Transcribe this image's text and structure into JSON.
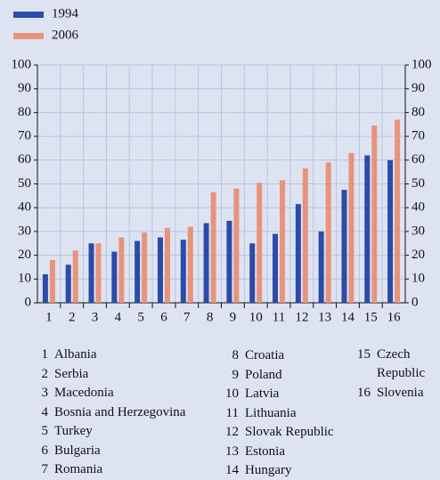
{
  "chart_data": {
    "type": "bar",
    "categories": [
      "1",
      "2",
      "3",
      "4",
      "5",
      "6",
      "7",
      "8",
      "9",
      "10",
      "11",
      "12",
      "13",
      "14",
      "15",
      "16"
    ],
    "series": [
      {
        "name": "1994",
        "color": "#2c4aa8",
        "values": [
          12,
          16,
          25,
          21.5,
          26,
          27.5,
          26.5,
          33.5,
          34.5,
          25,
          29,
          41.5,
          30,
          47.5,
          62,
          60
        ]
      },
      {
        "name": "2006",
        "color": "#e8937c",
        "values": [
          18,
          22,
          25,
          27.5,
          29.5,
          31.5,
          32,
          46.5,
          48,
          50.5,
          51.5,
          56.5,
          59,
          63,
          74.5,
          77
        ]
      }
    ],
    "ylim": [
      0,
      100
    ],
    "yticks": [
      0,
      10,
      20,
      30,
      40,
      50,
      60,
      70,
      80,
      90,
      100
    ],
    "y2lim": [
      0,
      100
    ],
    "y2ticks": [
      0,
      10,
      20,
      30,
      40,
      50,
      60,
      70,
      80,
      90,
      100
    ],
    "grid": true,
    "notes": [
      {
        "key": "1",
        "name": "Albania"
      },
      {
        "key": "2",
        "name": "Serbia"
      },
      {
        "key": "3",
        "name": "Macedonia"
      },
      {
        "key": "4",
        "name": "Bosnia and Herzegovina"
      },
      {
        "key": "5",
        "name": "Turkey"
      },
      {
        "key": "6",
        "name": "Bulgaria"
      },
      {
        "key": "7",
        "name": "Romania"
      },
      {
        "key": "8",
        "name": "Croatia"
      },
      {
        "key": "9",
        "name": "Poland"
      },
      {
        "key": "10",
        "name": "Latvia"
      },
      {
        "key": "11",
        "name": "Lithuania"
      },
      {
        "key": "12",
        "name": "Slovak Republic"
      },
      {
        "key": "13",
        "name": "Estonia"
      },
      {
        "key": "14",
        "name": "Hungary"
      },
      {
        "key": "15",
        "name": "Czech Republic"
      },
      {
        "key": "16",
        "name": "Slovenia"
      }
    ]
  }
}
